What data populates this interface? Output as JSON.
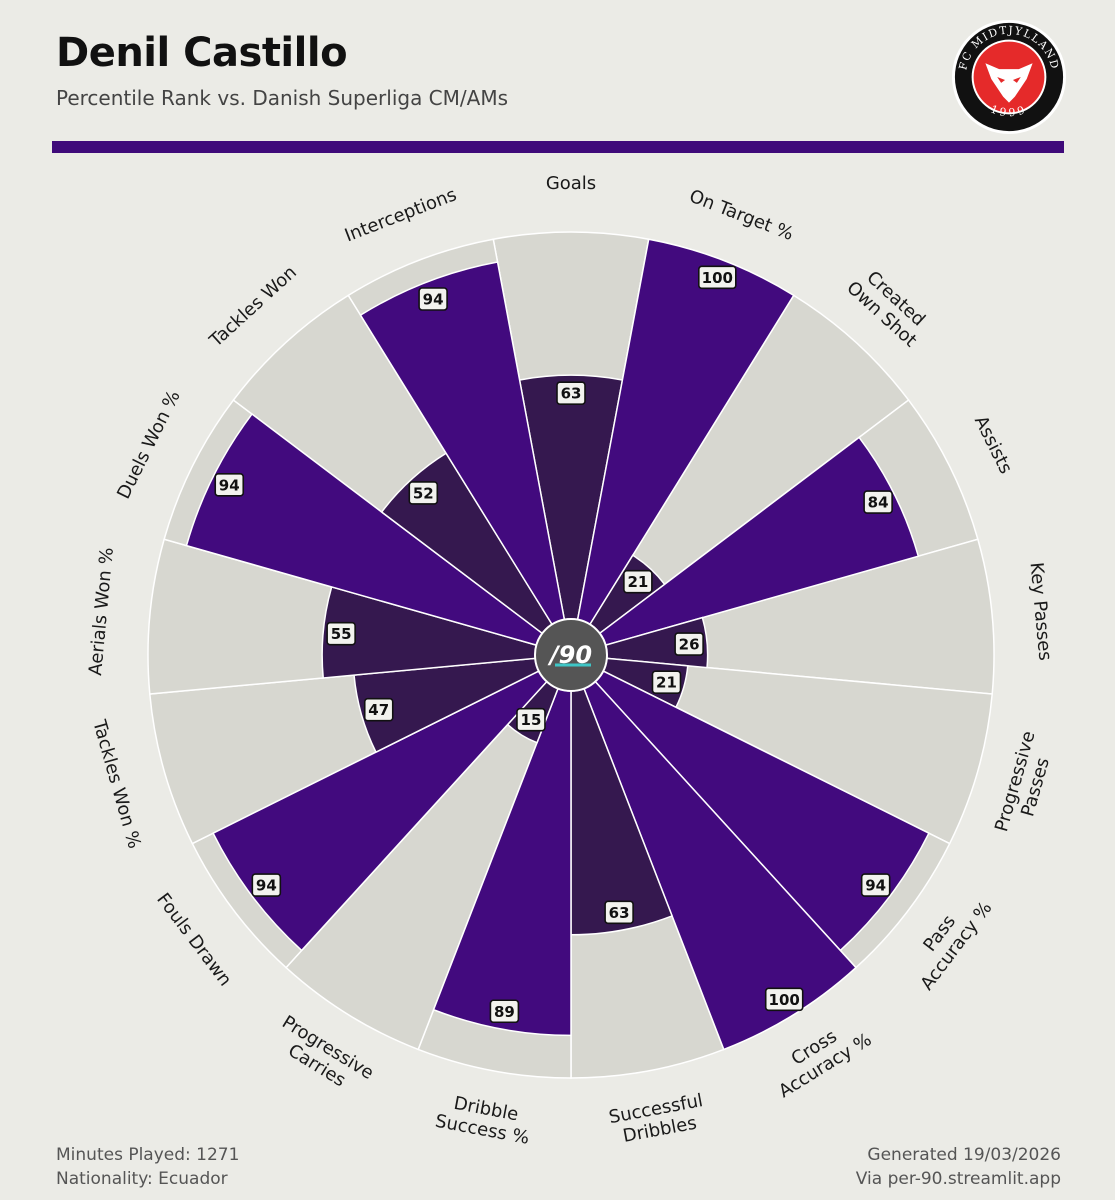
{
  "header": {
    "title": "Denil Castillo",
    "subtitle": "Percentile Rank vs. Danish Superliga CM/AMs",
    "rule_color": "#3f0a7a"
  },
  "logo": {
    "top_text": "FC MIDTJYLLAND",
    "year": "1999",
    "ring_color": "#111111",
    "inner_color": "#e52a2a"
  },
  "center_badge": "/90",
  "colors": {
    "high": "#420a7e",
    "low": "#35184f",
    "track": "#d7d7d0",
    "background": "#ebebe6",
    "badge_bg": "#555555"
  },
  "chart_data": {
    "type": "pie",
    "subtype": "polar-bar",
    "title": "Percentile Rank vs. Danish Superliga CM/AMs",
    "categories": [
      [
        "Goals"
      ],
      [
        "On Target %"
      ],
      [
        "Created",
        "Own Shot"
      ],
      [
        "Assists"
      ],
      [
        "Key Passes"
      ],
      [
        "Progressive",
        "Passes"
      ],
      [
        "Pass",
        "Accuracy %"
      ],
      [
        "Cross",
        "Accuracy %"
      ],
      [
        "Successful",
        "Dribbles"
      ],
      [
        "Dribble",
        "Success %"
      ],
      [
        "Progressive",
        "Carries"
      ],
      [
        "Fouls Drawn"
      ],
      [
        "Tackles Won %"
      ],
      [
        "Aerials Won %"
      ],
      [
        "Duels Won %"
      ],
      [
        "Tackles Won"
      ],
      [
        "Interceptions"
      ]
    ],
    "values": [
      63,
      100,
      21,
      84,
      26,
      21,
      94,
      100,
      63,
      89,
      15,
      94,
      47,
      55,
      94,
      52,
      94
    ],
    "range": [
      0,
      100
    ]
  },
  "footer": {
    "minutes": "Minutes Played: 1271",
    "nationality": "Nationality: Ecuador",
    "generated": "Generated 19/03/2026",
    "via": "Via per-90.streamlit.app"
  }
}
